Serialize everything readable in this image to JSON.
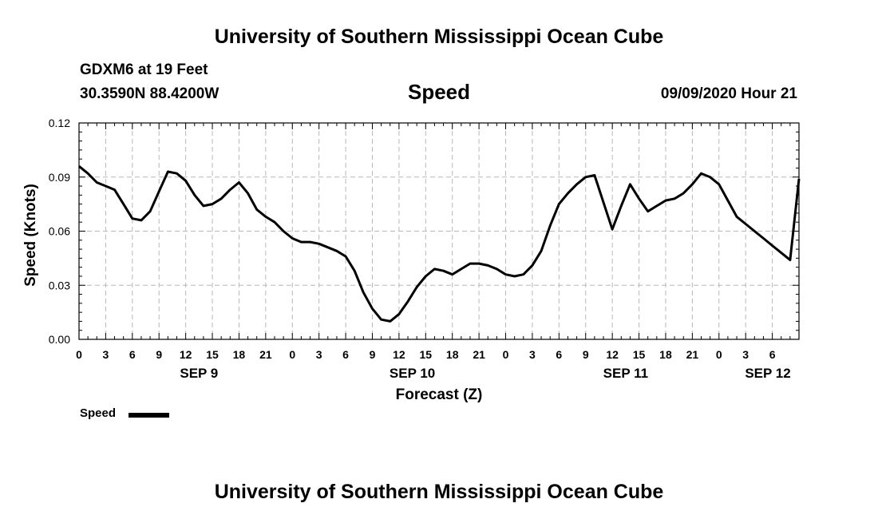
{
  "header": {
    "title_top": "University of Southern Mississippi Ocean Cube",
    "station": "GDXM6 at 19 Feet",
    "location": "30.3590N 88.4200W",
    "variable": "Speed",
    "datetime": "09/09/2020 Hour 21"
  },
  "footer": {
    "title_bottom": "University of Southern Mississippi Ocean Cube"
  },
  "legend": {
    "label": "Speed",
    "color": "#000000"
  },
  "chart_data": {
    "type": "line",
    "title": "Speed",
    "xlabel": "Forecast (Z)",
    "ylabel": "Speed (Knots)",
    "xlim": [
      0,
      81
    ],
    "ylim": [
      0,
      0.12
    ],
    "yticks": [
      0.0,
      0.03,
      0.06,
      0.09,
      0.12
    ],
    "ytick_labels": [
      "0.00",
      "0.03",
      "0.06",
      "0.09",
      "0.12"
    ],
    "xtick_labels": [
      "0",
      "3",
      "6",
      "9",
      "12",
      "15",
      "18",
      "21",
      "0",
      "3",
      "6",
      "9",
      "12",
      "15",
      "18",
      "21",
      "0",
      "3",
      "6",
      "9",
      "12",
      "15",
      "18",
      "21",
      "0",
      "3",
      "6"
    ],
    "date_labels": [
      {
        "label": "SEP 9",
        "hour": 13.5
      },
      {
        "label": "SEP 10",
        "hour": 37.5
      },
      {
        "label": "SEP 11",
        "hour": 61.5
      },
      {
        "label": "SEP 12",
        "hour": 77.5
      }
    ],
    "grid": true,
    "series": [
      {
        "name": "Speed",
        "color": "#000000",
        "x": [
          0,
          1,
          2,
          3,
          4,
          5,
          6,
          7,
          8,
          9,
          10,
          11,
          12,
          13,
          14,
          15,
          16,
          17,
          18,
          19,
          20,
          21,
          22,
          23,
          24,
          25,
          26,
          27,
          28,
          29,
          30,
          31,
          32,
          33,
          34,
          35,
          36,
          37,
          38,
          39,
          40,
          41,
          42,
          43,
          44,
          45,
          46,
          47,
          48,
          49,
          50,
          51,
          52,
          53,
          54,
          55,
          56,
          57,
          58,
          59,
          60,
          61,
          62,
          63,
          64,
          65,
          66,
          67,
          68,
          69,
          70,
          71,
          72,
          73,
          74,
          75,
          76,
          77,
          78,
          79,
          80,
          81
        ],
        "values": [
          0.096,
          0.092,
          0.087,
          0.085,
          0.083,
          0.075,
          0.067,
          0.066,
          0.071,
          0.082,
          0.093,
          0.092,
          0.088,
          0.08,
          0.074,
          0.075,
          0.078,
          0.083,
          0.087,
          0.081,
          0.072,
          0.068,
          0.065,
          0.06,
          0.056,
          0.054,
          0.054,
          0.053,
          0.051,
          0.049,
          0.046,
          0.038,
          0.026,
          0.017,
          0.011,
          0.01,
          0.014,
          0.021,
          0.029,
          0.035,
          0.039,
          0.038,
          0.036,
          0.039,
          0.042,
          0.042,
          0.041,
          0.039,
          0.036,
          0.035,
          0.036,
          0.041,
          0.049,
          0.063,
          0.075,
          0.081,
          0.086,
          0.09,
          0.091,
          0.076,
          0.061,
          0.074,
          0.086,
          0.078,
          0.071,
          0.074,
          0.077,
          0.078,
          0.081,
          0.086,
          0.092,
          0.09,
          0.086,
          0.077,
          0.068,
          0.064,
          0.06,
          0.056,
          0.052,
          0.048,
          0.044,
          0.089
        ]
      }
    ]
  }
}
